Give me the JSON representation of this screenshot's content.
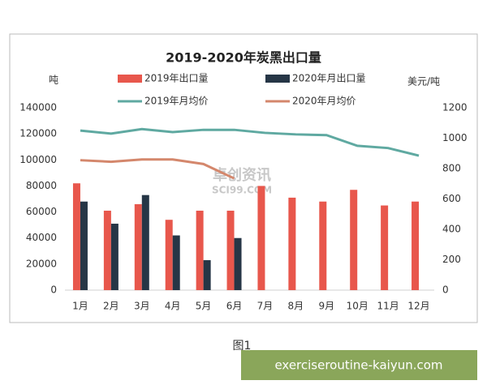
{
  "chart_data": {
    "type": "combo",
    "title": "2019-2020年炭黑出口量",
    "y_label": "吨",
    "y2_label": "美元/吨",
    "categories": [
      "1月",
      "2月",
      "3月",
      "4月",
      "5月",
      "6月",
      "7月",
      "8月",
      "9月",
      "10月",
      "11月",
      "12月"
    ],
    "series": [
      {
        "name": "2019年出口量",
        "type": "bar",
        "color": "#e8574c",
        "values": [
          82000,
          61000,
          66000,
          54000,
          61000,
          61000,
          80000,
          71000,
          68000,
          77000,
          65000,
          68000
        ]
      },
      {
        "name": "2020年月出口量",
        "type": "bar",
        "color": "#263646",
        "values": [
          68000,
          51000,
          73000,
          42000,
          23000,
          40000,
          null,
          null,
          null,
          null,
          null,
          null
        ]
      },
      {
        "name": "2019年月均价",
        "type": "line",
        "axis": "y2",
        "color": "#5fa9a1",
        "values": [
          1050,
          1030,
          1060,
          1040,
          1055,
          1055,
          1035,
          1025,
          1020,
          950,
          935,
          885
        ]
      },
      {
        "name": "2020年月均价",
        "type": "line",
        "axis": "y2",
        "color": "#d4876c",
        "values": [
          855,
          845,
          860,
          860,
          830,
          735,
          null,
          null,
          null,
          null,
          null,
          null
        ]
      }
    ],
    "ylim": [
      0,
      140000
    ],
    "yticks": [
      0,
      20000,
      40000,
      60000,
      80000,
      100000,
      120000,
      140000
    ],
    "y2lim": [
      0,
      1200
    ],
    "y2ticks": [
      0,
      200,
      400,
      600,
      800,
      1000,
      1200
    ]
  },
  "watermark": [
    "卓创资讯",
    "SCI99.COM"
  ],
  "caption": "图1",
  "banner": "exerciseroutine-kaiyun.com"
}
